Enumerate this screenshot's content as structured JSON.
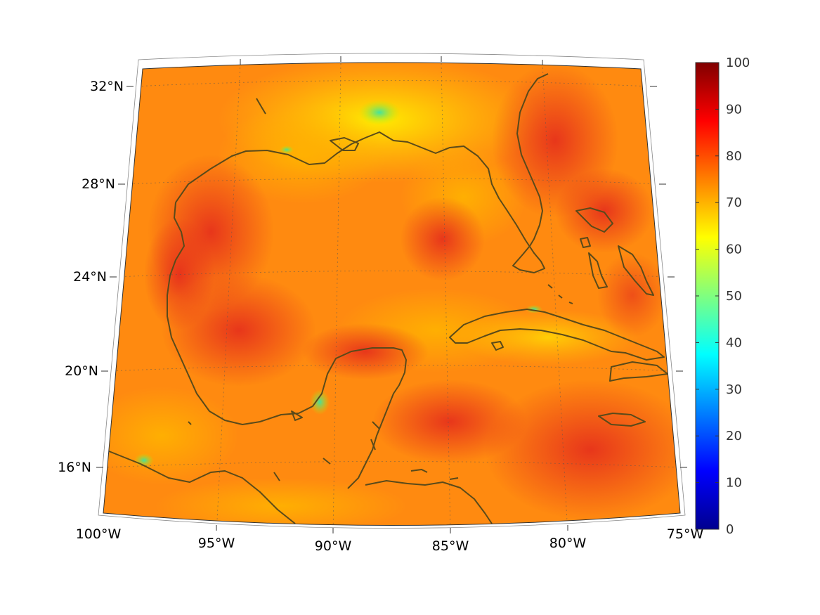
{
  "map": {
    "lon_labels": [
      "100°W",
      "95°W",
      "90°W",
      "85°W",
      "80°W",
      "75°W"
    ],
    "lat_labels": [
      "32°N",
      "28°N",
      "24°N",
      "20°N",
      "16°N"
    ]
  },
  "colorbar": {
    "labels": [
      "100",
      "90",
      "80",
      "70",
      "60",
      "50",
      "40",
      "30",
      "20",
      "10",
      "0"
    ],
    "min": 0,
    "max": 100,
    "colormap": "jet"
  },
  "colors": {
    "coastline": "#5a4a1a",
    "field_low": "#ff9a00",
    "field_high": "#e8321e"
  }
}
